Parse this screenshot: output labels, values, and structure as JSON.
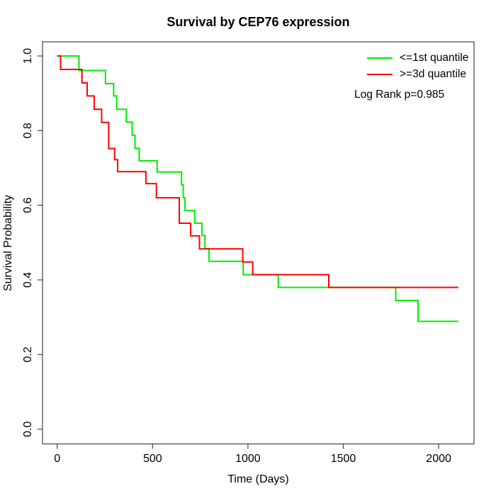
{
  "title": "Survival by CEP76 expression",
  "axes": {
    "x": {
      "label": "Time (Days)"
    },
    "y": {
      "label": "Survival Probability"
    }
  },
  "legend": {
    "items": [
      {
        "label": "<=1st quantile",
        "color": "#00ee00"
      },
      {
        "label": ">=3d quantile",
        "color": "#ff0000"
      }
    ],
    "note": "Log Rank p=0.985"
  },
  "chart_data": {
    "type": "line",
    "subtype": "kaplan-meier-step",
    "title": "Survival by CEP76 expression",
    "xlabel": "Time (Days)",
    "ylabel": "Survival Probability",
    "xlim": [
      0,
      2100
    ],
    "ylim": [
      0,
      1
    ],
    "x_ticks": [
      0,
      500,
      1000,
      1500,
      2000
    ],
    "y_ticks": [
      0.0,
      0.2,
      0.4,
      0.6,
      0.8,
      1.0
    ],
    "grid": false,
    "legend_position": "top-right",
    "annotation": "Log Rank p=0.985",
    "end_time": 2103,
    "series": [
      {
        "name": "<=1st quantile",
        "color": "#00ee00",
        "steps": [
          [
            0,
            1.0
          ],
          [
            114,
            0.961
          ],
          [
            253,
            0.926
          ],
          [
            296,
            0.893
          ],
          [
            312,
            0.857
          ],
          [
            362,
            0.823
          ],
          [
            393,
            0.788
          ],
          [
            408,
            0.753
          ],
          [
            430,
            0.719
          ],
          [
            524,
            0.689
          ],
          [
            652,
            0.655
          ],
          [
            661,
            0.62
          ],
          [
            670,
            0.586
          ],
          [
            721,
            0.552
          ],
          [
            759,
            0.519
          ],
          [
            775,
            0.484
          ],
          [
            796,
            0.45
          ],
          [
            975,
            0.414
          ],
          [
            1159,
            0.38
          ],
          [
            1775,
            0.345
          ],
          [
            1892,
            0.289
          ]
        ]
      },
      {
        "name": ">=3d quantile",
        "color": "#ff0000",
        "steps": [
          [
            0,
            1.0
          ],
          [
            18,
            0.964
          ],
          [
            130,
            0.928
          ],
          [
            157,
            0.893
          ],
          [
            194,
            0.857
          ],
          [
            233,
            0.822
          ],
          [
            270,
            0.752
          ],
          [
            301,
            0.722
          ],
          [
            317,
            0.69
          ],
          [
            465,
            0.658
          ],
          [
            520,
            0.62
          ],
          [
            640,
            0.552
          ],
          [
            700,
            0.518
          ],
          [
            746,
            0.483
          ],
          [
            973,
            0.448
          ],
          [
            1025,
            0.414
          ],
          [
            1424,
            0.38
          ]
        ]
      }
    ]
  }
}
